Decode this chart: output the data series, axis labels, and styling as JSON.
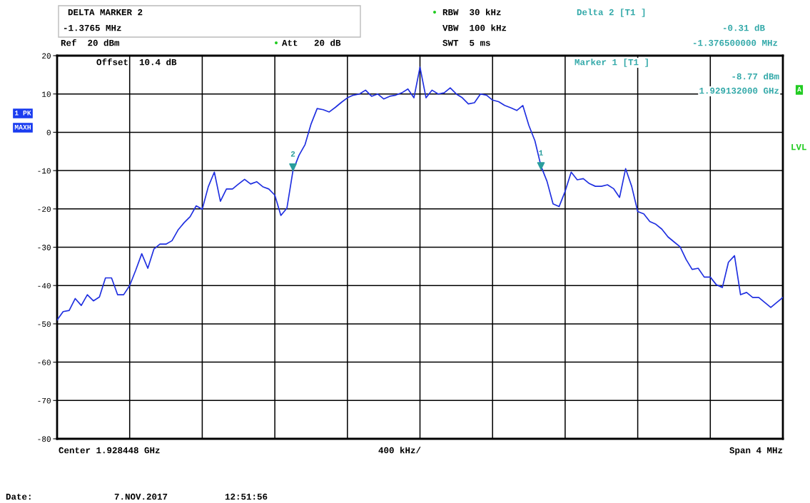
{
  "chart_data": {
    "type": "line",
    "categories": [
      null,
      null,
      null,
      null,
      null,
      null,
      null,
      null,
      null,
      null,
      null,
      null,
      null,
      null,
      null,
      null,
      null,
      null,
      null,
      null,
      null,
      null,
      null,
      null,
      null,
      null,
      null,
      null,
      null,
      null,
      null,
      null,
      null,
      null,
      null,
      null,
      null,
      null,
      null,
      null,
      null,
      null,
      null,
      null,
      null,
      null,
      null,
      null,
      null,
      null,
      null,
      null,
      null,
      null,
      null,
      null,
      null,
      null,
      null,
      null,
      null,
      null,
      null,
      null,
      null,
      null,
      null,
      null,
      null,
      null,
      null,
      null,
      null,
      null,
      null,
      null,
      null,
      null,
      null,
      null,
      null,
      null,
      null,
      null,
      null,
      null,
      null,
      null,
      null,
      null,
      null,
      null,
      null,
      null,
      null,
      null,
      null,
      null,
      null,
      null,
      null,
      null,
      null,
      null,
      null,
      null,
      null,
      null,
      null,
      null,
      null,
      null,
      null,
      null,
      null,
      null,
      null,
      null,
      null,
      null,
      null
    ],
    "series": [
      {
        "color": "#1f2fe0",
        "values": [
          -49,
          -46.8,
          -46.5,
          -43.4,
          -45.2,
          -42.4,
          -44,
          -43,
          -38,
          -38,
          -42.4,
          -42.4,
          -40,
          -36,
          -31.7,
          -35.5,
          -30.5,
          -29.2,
          -29.2,
          -28.3,
          -25.5,
          -23.6,
          -22,
          -19.2,
          -20.1,
          -14.2,
          -10.4,
          -18,
          -14.8,
          -14.8,
          -13.5,
          -12.3,
          -13.5,
          -12.9,
          -14.2,
          -14.8,
          -16.4,
          -21.7,
          -19.8,
          -10,
          -6,
          -3.2,
          2.2,
          6.2,
          5.9,
          5.3,
          6.5,
          7.8,
          9,
          9.7,
          10,
          11,
          9.4,
          10,
          8.7,
          9.4,
          9.7,
          10.3,
          11.3,
          9,
          17,
          9,
          11,
          10,
          10.3,
          11.6,
          10,
          9,
          7.4,
          7.7,
          10,
          9.7,
          8.4,
          8,
          7,
          6.4,
          5.7,
          7,
          1.8,
          -2.2,
          -8.8,
          -12.8,
          -18.7,
          -19.4,
          -15.4,
          -10.4,
          -12.4,
          -12.1,
          -13.4,
          -14.1,
          -14.1,
          -13.7,
          -14.7,
          -17,
          -9.5,
          -14.1,
          -20.7,
          -21.3,
          -23.3,
          -24,
          -25.3,
          -27.3,
          -28.6,
          -29.9,
          -33.2,
          -35.8,
          -35.5,
          -37.8,
          -37.8,
          -39.8,
          -40.5,
          -33.9,
          -32.2,
          -42.4,
          -41.8,
          -43.1,
          -43.1,
          -44.4,
          -45.7,
          -44.4,
          -43.1
        ]
      },
      {
        "type": "scatter",
        "name": "2",
        "marker": "triangle",
        "color": "#2a9d9d",
        "values": [
          null,
          null,
          null,
          null,
          null,
          null,
          null,
          null,
          null,
          null,
          null,
          null,
          null,
          null,
          null,
          null,
          null,
          null,
          null,
          null,
          null,
          null,
          null,
          null,
          null,
          null,
          null,
          null,
          null,
          null,
          null,
          null,
          null,
          null,
          null,
          null,
          null,
          null,
          null,
          -9.1,
          null,
          null,
          null,
          null,
          null,
          null,
          null,
          null,
          null,
          null,
          null,
          null,
          null,
          null,
          null,
          null,
          null,
          null,
          null,
          null,
          null,
          null,
          null,
          null,
          null,
          null,
          null,
          null,
          null,
          null,
          null,
          null,
          null,
          null,
          null,
          null,
          null,
          null,
          null,
          null,
          null,
          null,
          null,
          null,
          null,
          null,
          null,
          null,
          null,
          null,
          null,
          null,
          null,
          null,
          null,
          null,
          null,
          null,
          null,
          null,
          null,
          null,
          null,
          null,
          null,
          null,
          null,
          null,
          null,
          null,
          null,
          null,
          null,
          null,
          null,
          null,
          null,
          null,
          null,
          null,
          null
        ]
      },
      {
        "type": "scatter",
        "name": "1",
        "marker": "triangle",
        "color": "#2a9d9d",
        "values": [
          null,
          null,
          null,
          null,
          null,
          null,
          null,
          null,
          null,
          null,
          null,
          null,
          null,
          null,
          null,
          null,
          null,
          null,
          null,
          null,
          null,
          null,
          null,
          null,
          null,
          null,
          null,
          null,
          null,
          null,
          null,
          null,
          null,
          null,
          null,
          null,
          null,
          null,
          null,
          null,
          null,
          null,
          null,
          null,
          null,
          null,
          null,
          null,
          null,
          null,
          null,
          null,
          null,
          null,
          null,
          null,
          null,
          null,
          null,
          null,
          null,
          null,
          null,
          null,
          null,
          null,
          null,
          null,
          null,
          null,
          null,
          null,
          null,
          null,
          null,
          null,
          null,
          null,
          null,
          null,
          -8.8,
          null,
          null,
          null,
          null,
          null,
          null,
          null,
          null,
          null,
          null,
          null,
          null,
          null,
          null,
          null,
          null,
          null,
          null,
          null,
          null,
          null,
          null,
          null,
          null,
          null,
          null,
          null,
          null,
          null,
          null,
          null,
          null,
          null,
          null,
          null,
          null,
          null,
          null,
          null,
          null
        ]
      }
    ],
    "ylim": [
      -80,
      20
    ],
    "yticks": [
      20,
      10,
      0,
      -10,
      -20,
      -30,
      -40,
      -50,
      -60,
      -70,
      -80
    ],
    "grid": true,
    "tick_labels": "y",
    "annotations": [
      "DELTA MARKER 2",
      "-1.3765 MHz",
      "Ref  20 dBm",
      "Att   20 dB",
      "RBW  30 kHz",
      "VBW  100 kHz",
      "SWT  5 ms",
      "Delta 2 [T1 ]",
      "-0.31 dB",
      "-1.376500000 MHz",
      "Offset  10.4 dB",
      "Marker 1 [T1 ]",
      "-8.77 dBm",
      "1.929132000 GHz",
      "1 PK",
      "MAXH",
      "A",
      "LVL",
      "Center 1.928448 GHz",
      "400 kHz/",
      "Span 4 MHz",
      "Date:",
      "7.NOV.2017",
      "12:51:56"
    ]
  }
}
